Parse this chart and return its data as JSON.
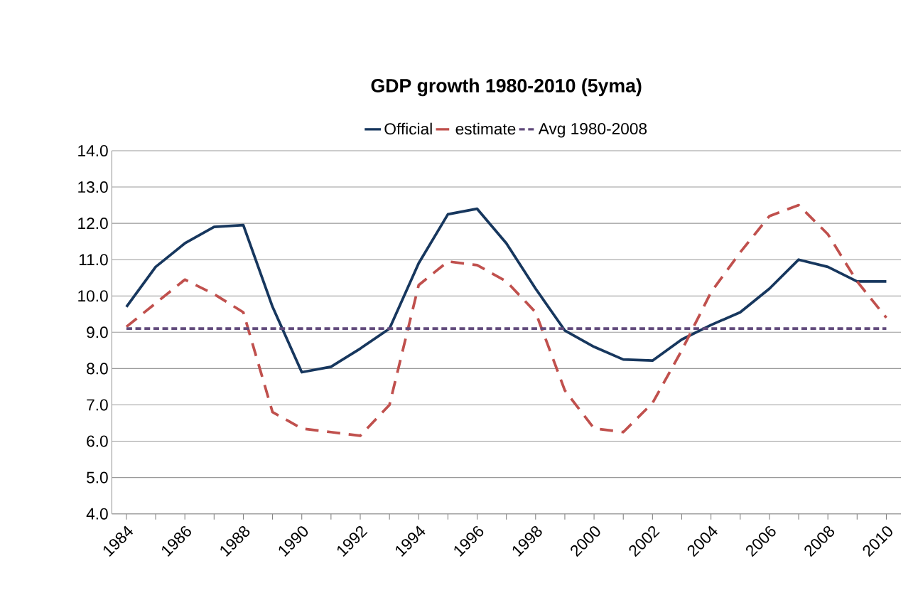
{
  "chart_data": {
    "type": "line",
    "title": "GDP growth 1980-2010 (5yma)",
    "categories": [
      "1984",
      null,
      "1986",
      null,
      "1988",
      null,
      "1990",
      null,
      "1992",
      null,
      "1994",
      null,
      "1996",
      null,
      "1998",
      null,
      "2000",
      null,
      "2002",
      null,
      "2004",
      null,
      "2006",
      null,
      "2008",
      null,
      "2010"
    ],
    "series": [
      {
        "name": "Official",
        "color": "#17375e",
        "line_style": "solid",
        "values": [
          9.7,
          10.8,
          11.45,
          11.9,
          11.95,
          9.7,
          7.9,
          8.05,
          8.55,
          9.1,
          10.9,
          12.25,
          12.4,
          11.45,
          10.2,
          9.05,
          8.6,
          8.25,
          8.22,
          8.8,
          9.2,
          9.55,
          10.2,
          11.0,
          10.8,
          10.4,
          10.4
        ]
      },
      {
        "name": "estimate",
        "color": "#c0504d",
        "line_style": "dashed",
        "values": [
          9.15,
          9.8,
          10.45,
          10.05,
          9.55,
          6.8,
          6.35,
          6.25,
          6.15,
          7.0,
          10.3,
          10.95,
          10.85,
          10.4,
          9.55,
          7.4,
          6.35,
          6.25,
          7.05,
          8.5,
          10.1,
          11.2,
          12.2,
          12.5,
          11.7,
          10.4,
          9.4
        ]
      },
      {
        "name": "Avg 1980-2008",
        "color": "#604a7b",
        "line_style": "dotted",
        "values": [
          9.1,
          9.1,
          9.1,
          9.1,
          9.1,
          9.1,
          9.1,
          9.1,
          9.1,
          9.1,
          9.1,
          9.1,
          9.1,
          9.1,
          9.1,
          9.1,
          9.1,
          9.1,
          9.1,
          9.1,
          9.1,
          9.1,
          9.1,
          9.1,
          9.1,
          9.1,
          9.1
        ]
      }
    ],
    "ylim": [
      4,
      14
    ],
    "yticks": [
      {
        "value": 4,
        "label": "4.0"
      },
      {
        "value": 5,
        "label": "5.0"
      },
      {
        "value": 6,
        "label": "6.0"
      },
      {
        "value": 7,
        "label": "7.0"
      },
      {
        "value": 8,
        "label": "8.0"
      },
      {
        "value": 9,
        "label": "9.0"
      },
      {
        "value": 10,
        "label": "10.0"
      },
      {
        "value": 11,
        "label": "11.0"
      },
      {
        "value": 12,
        "label": "12.0"
      },
      {
        "value": 13,
        "label": "13.0"
      },
      {
        "value": 14,
        "label": "14.0"
      }
    ],
    "grid": "y",
    "legend": "top",
    "marker": "none"
  }
}
